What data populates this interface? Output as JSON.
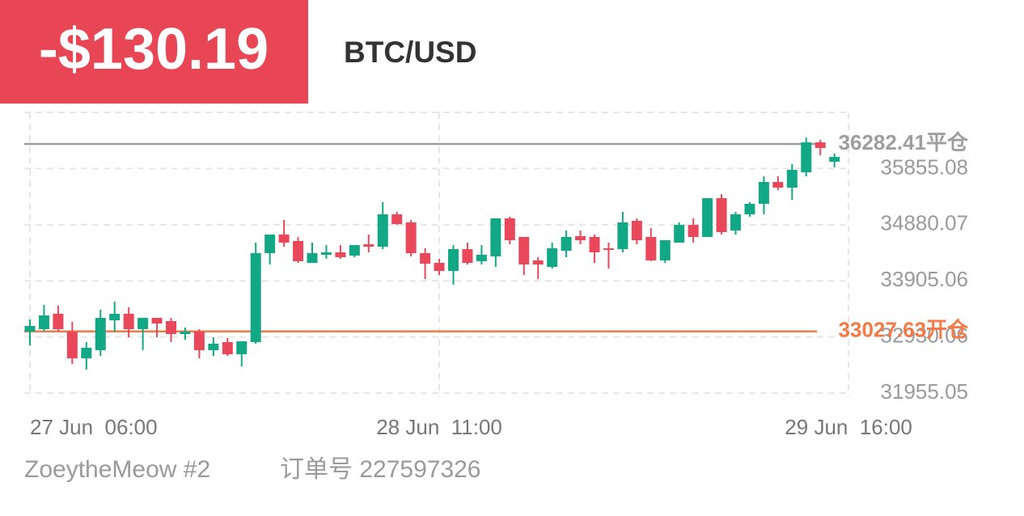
{
  "header": {
    "pnl": "-$130.19",
    "symbol": "BTC/USD"
  },
  "chart_data": {
    "type": "candlestick",
    "categories": [
      "27 Jun  06:00",
      null,
      null,
      null,
      null,
      null,
      null,
      null,
      null,
      null,
      null,
      null,
      null,
      null,
      null,
      null,
      null,
      null,
      null,
      null,
      null,
      null,
      null,
      null,
      null,
      null,
      null,
      null,
      null,
      "28 Jun  11:00",
      null,
      null,
      null,
      null,
      null,
      null,
      null,
      null,
      null,
      null,
      null,
      null,
      null,
      null,
      null,
      null,
      null,
      null,
      null,
      null,
      null,
      null,
      null,
      null,
      null,
      null,
      null,
      null,
      "29 Jun  16:00"
    ],
    "open": [
      33024,
      33066,
      33333,
      33024,
      32560,
      32701,
      33220,
      33333,
      33066,
      33262,
      33206,
      32981,
      33024,
      32701,
      32841,
      32630,
      32841,
      34386,
      34709,
      34597,
      34217,
      34358,
      34400,
      34344,
      34540,
      34498,
      35060,
      34920,
      34386,
      34217,
      34077,
      34456,
      34246,
      34330,
      34990,
      34667,
      34260,
      34147,
      34428,
      34681,
      34667,
      34470,
      34456,
      34948,
      34667,
      34260,
      34569,
      34877,
      34667,
      35341,
      34779,
      35060,
      35243,
      35622,
      35524,
      35790,
      36310,
      35973,
      null
    ],
    "high": [
      33234,
      33487,
      33473,
      33192,
      32841,
      33403,
      33543,
      33445,
      33262,
      33262,
      33262,
      33094,
      33066,
      32925,
      32911,
      32855,
      34569,
      34709,
      34962,
      34667,
      34569,
      34526,
      34526,
      34526,
      34709,
      35271,
      35102,
      34962,
      34470,
      34288,
      34526,
      34569,
      34526,
      34990,
      35018,
      34667,
      34316,
      34569,
      34779,
      34779,
      34709,
      34569,
      35102,
      34990,
      34821,
      34611,
      34920,
      34990,
      35341,
      35411,
      35102,
      35271,
      35720,
      35720,
      35931,
      36394,
      36352,
      36114,
      null
    ],
    "low": [
      32785,
      33024,
      33024,
      32462,
      32364,
      32602,
      33024,
      32925,
      32701,
      32925,
      32841,
      32883,
      32560,
      32602,
      32602,
      32420,
      32813,
      34189,
      34498,
      34217,
      34217,
      34288,
      34288,
      34316,
      34400,
      34456,
      34877,
      34330,
      33937,
      34007,
      33838,
      34189,
      34189,
      34147,
      34540,
      34007,
      33937,
      34119,
      34316,
      34540,
      34217,
      34119,
      34400,
      34540,
      34246,
      34217,
      34569,
      34569,
      34667,
      34709,
      34709,
      35018,
      35060,
      35481,
      35313,
      35720,
      36085,
      35875,
      null
    ],
    "close": [
      33122,
      33305,
      33066,
      32560,
      32743,
      33262,
      33333,
      33066,
      33262,
      33164,
      32981,
      33024,
      32701,
      32813,
      32630,
      32855,
      34386,
      34709,
      34569,
      34246,
      34386,
      34400,
      34316,
      34526,
      34498,
      35060,
      34892,
      34386,
      34203,
      34077,
      34456,
      34217,
      34358,
      34990,
      34611,
      34189,
      34189,
      34470,
      34667,
      34611,
      34400,
      34442,
      34920,
      34611,
      34260,
      34611,
      34877,
      34667,
      35341,
      34751,
      35060,
      35243,
      35622,
      35524,
      35833,
      36310,
      36212,
      36057,
      null
    ],
    "up_color": "#12a886",
    "down_color": "#e8485a",
    "ylim": [
      31900,
      36830
    ],
    "yticks": [
      31955.05,
      32930.06,
      33905.06,
      34880.07,
      35855.08
    ],
    "grid": true,
    "close_line": {
      "value": 36282.41,
      "label": "36282.41平仓",
      "color": "#9e9e9e"
    },
    "open_line": {
      "value": 33027.63,
      "label": "33027.63开仓",
      "color": "#f47a45"
    }
  },
  "footer": {
    "account": "ZoeytheMeow #2",
    "order": "订单号 227597326"
  }
}
